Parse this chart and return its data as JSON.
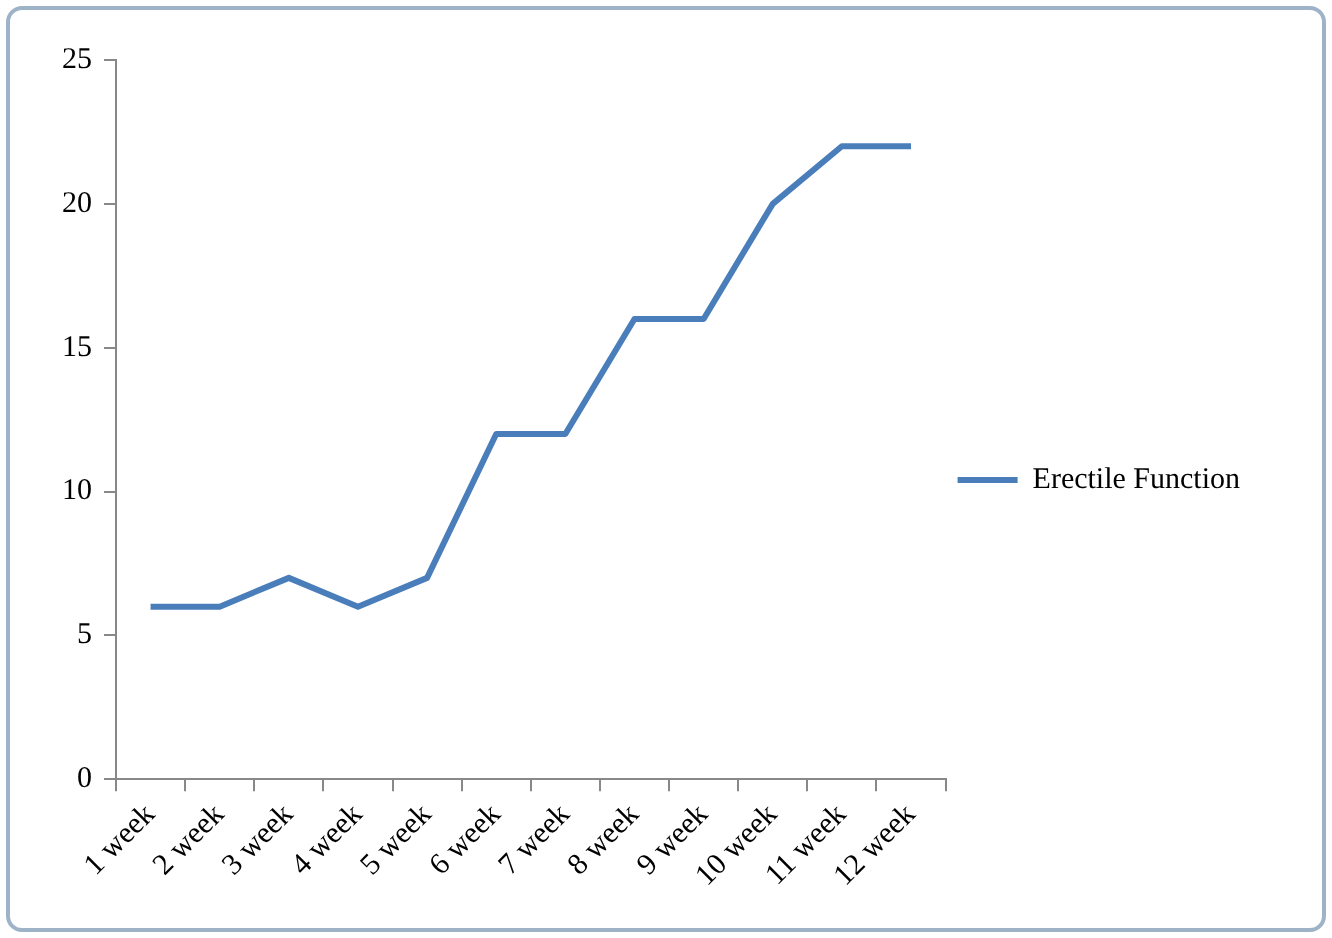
{
  "chart_data": {
    "type": "line",
    "categories": [
      "1 week",
      "2 week",
      "3 week",
      "4 week",
      "5 week",
      "6 week",
      "7 week",
      "8 week",
      "9 week",
      "10 week",
      "11 week",
      "12 week"
    ],
    "series": [
      {
        "name": "Erectile Function",
        "color": "#4a7ebb",
        "values": [
          6,
          6,
          7,
          6,
          7,
          12,
          12,
          16,
          16,
          20,
          22,
          22
        ]
      }
    ],
    "ylim": [
      0,
      25
    ],
    "yticks": [
      0,
      5,
      10,
      15,
      20,
      25
    ],
    "grid": false,
    "legend": "right",
    "marker": "none"
  }
}
